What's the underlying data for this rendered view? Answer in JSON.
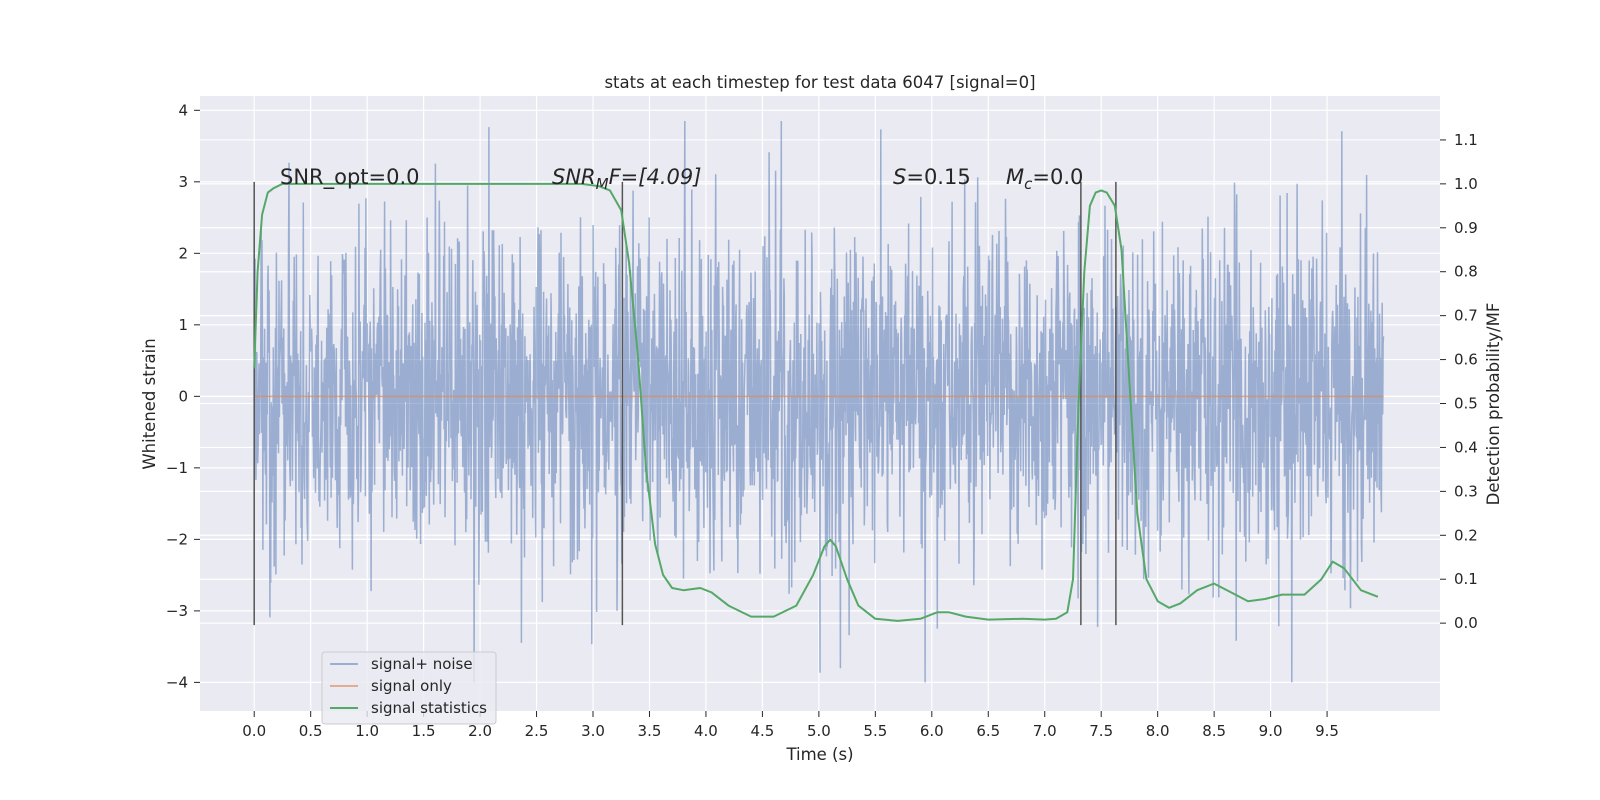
{
  "chart_data": {
    "type": "line",
    "title": "stats at each timestep for test data 6047 [signal=0]",
    "xlabel": "Time (s)",
    "ylabel": "Whitened strain",
    "y2label": "Detection probability/MF",
    "xlim": [
      -0.48,
      10.5
    ],
    "ylim": [
      -4.4,
      4.2
    ],
    "y2lim": [
      -0.2,
      1.2
    ],
    "xticks": [
      "0.0",
      "0.5",
      "1.0",
      "1.5",
      "2.0",
      "2.5",
      "3.0",
      "3.5",
      "4.0",
      "4.5",
      "5.0",
      "5.5",
      "6.0",
      "6.5",
      "7.0",
      "7.5",
      "8.0",
      "8.5",
      "9.0",
      "9.5"
    ],
    "yticks": [
      "4",
      "3",
      "2",
      "1",
      "0",
      "−1",
      "−2",
      "−3",
      "−4"
    ],
    "y2ticks": [
      "1.1",
      "1.0",
      "0.9",
      "0.8",
      "0.7",
      "0.6",
      "0.5",
      "0.4",
      "0.3",
      "0.2",
      "0.1",
      "0.0"
    ],
    "grid": true,
    "legend_position": "lower-left",
    "legend": [
      "signal+ noise",
      "signal only",
      "signal statistics"
    ],
    "annotations": {
      "snr_opt": "SNR_opt=0.0",
      "snr_mf_base": "SNR",
      "snr_mf_sub": "M",
      "snr_mf_rest": "F=[4.09]",
      "s_label": "S",
      "s_value": "=0.15",
      "mc_base": "M",
      "mc_sub": "c",
      "mc_value": "=0.0"
    },
    "vertical_markers_x": [
      0.0,
      3.26,
      7.32,
      7.63
    ],
    "series": [
      {
        "name": "signal+ noise",
        "color": "#4c72b0",
        "description_stats": {
          "x_range": [
            0.0,
            10.0
          ],
          "typical_amplitude": 1.2,
          "min": -4.0,
          "max": 3.85
        }
      },
      {
        "name": "signal only",
        "color": "#dd8452",
        "x": [
          0.0,
          10.0
        ],
        "y": [
          0.0,
          0.0
        ]
      },
      {
        "name": "signal statistics",
        "color": "#55a868",
        "axis": "right",
        "x": [
          0.0,
          0.03,
          0.07,
          0.12,
          0.17,
          0.25,
          0.4,
          0.8,
          1.5,
          2.0,
          2.5,
          2.9,
          3.05,
          3.15,
          3.25,
          3.32,
          3.4,
          3.47,
          3.55,
          3.62,
          3.7,
          3.8,
          3.95,
          4.05,
          4.2,
          4.4,
          4.6,
          4.8,
          4.95,
          5.05,
          5.1,
          5.15,
          5.25,
          5.35,
          5.5,
          5.7,
          5.9,
          6.05,
          6.15,
          6.3,
          6.5,
          6.8,
          7.0,
          7.1,
          7.2,
          7.25,
          7.3,
          7.35,
          7.4,
          7.45,
          7.5,
          7.55,
          7.62,
          7.68,
          7.75,
          7.82,
          7.9,
          8.0,
          8.1,
          8.2,
          8.35,
          8.5,
          8.65,
          8.8,
          8.95,
          9.1,
          9.3,
          9.45,
          9.55,
          9.65,
          9.8,
          9.95
        ],
        "y": [
          0.58,
          0.8,
          0.93,
          0.98,
          0.99,
          1.0,
          1.0,
          1.0,
          1.0,
          1.0,
          1.0,
          1.0,
          0.995,
          0.985,
          0.94,
          0.82,
          0.6,
          0.35,
          0.18,
          0.11,
          0.08,
          0.075,
          0.08,
          0.07,
          0.04,
          0.015,
          0.015,
          0.04,
          0.11,
          0.175,
          0.19,
          0.175,
          0.1,
          0.04,
          0.01,
          0.005,
          0.01,
          0.025,
          0.025,
          0.015,
          0.008,
          0.01,
          0.008,
          0.01,
          0.025,
          0.1,
          0.5,
          0.8,
          0.95,
          0.98,
          0.985,
          0.98,
          0.95,
          0.85,
          0.55,
          0.25,
          0.1,
          0.05,
          0.035,
          0.045,
          0.075,
          0.09,
          0.07,
          0.05,
          0.055,
          0.065,
          0.065,
          0.1,
          0.14,
          0.125,
          0.075,
          0.06
        ]
      }
    ]
  }
}
